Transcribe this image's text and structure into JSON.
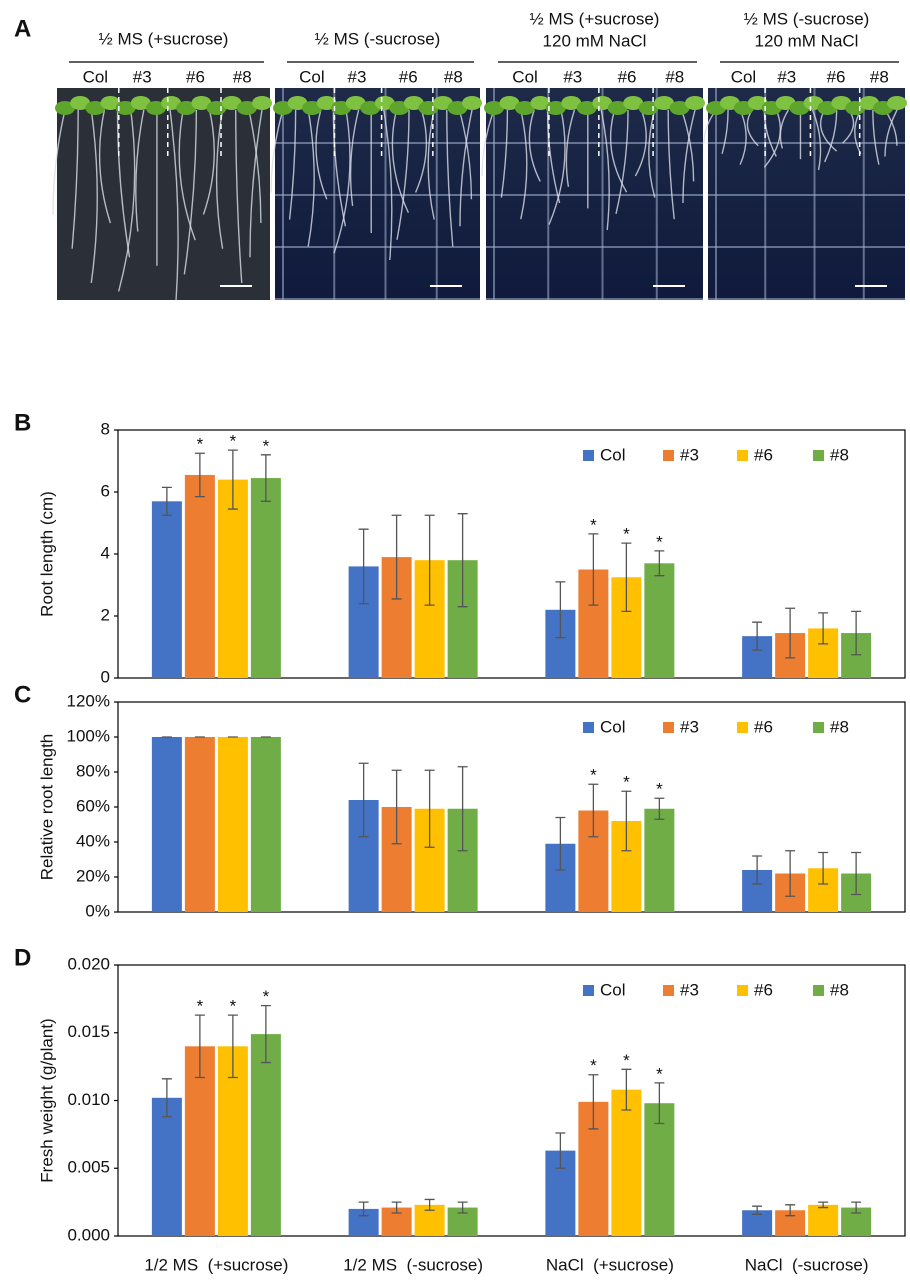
{
  "panel_a": {
    "label": "A",
    "plates": [
      {
        "title": [
          "½ MS (+sucrose)"
        ],
        "lanes": [
          "Col",
          "#3",
          "#6",
          "#8"
        ]
      },
      {
        "title": [
          "½ MS (-sucrose)"
        ],
        "lanes": [
          "Col",
          "#3",
          "#6",
          "#8"
        ]
      },
      {
        "title": [
          "½ MS (+sucrose)",
          "120 mM NaCl"
        ],
        "lanes": [
          "Col",
          "#3",
          "#6",
          "#8"
        ]
      },
      {
        "title": [
          "½ MS (-sucrose)",
          "120 mM NaCl"
        ],
        "lanes": [
          "Col",
          "#3",
          "#6",
          "#8"
        ]
      }
    ]
  },
  "chart_data": [
    {
      "type": "bar",
      "panel": "B",
      "y_label": "Root length (cm)",
      "categories": [
        null,
        null,
        null,
        null
      ],
      "ylim": [
        0,
        8
      ],
      "yticks": [
        0,
        2,
        4,
        6,
        8
      ],
      "legend": "top-right",
      "series": [
        {
          "name": "Col",
          "color": "#4472c4",
          "values": [
            5.7,
            3.6,
            2.2,
            1.35
          ],
          "errors": [
            0.45,
            1.2,
            0.9,
            0.45
          ],
          "annotations": [
            null,
            null,
            null,
            null
          ]
        },
        {
          "name": "#3",
          "color": "#ed7d31",
          "values": [
            6.55,
            3.9,
            3.5,
            1.45
          ],
          "errors": [
            0.7,
            1.35,
            1.15,
            0.8
          ],
          "annotations": [
            "*",
            null,
            "*",
            null
          ]
        },
        {
          "name": "#6",
          "color": "#ffc000",
          "values": [
            6.4,
            3.8,
            3.25,
            1.6
          ],
          "errors": [
            0.95,
            1.45,
            1.1,
            0.5
          ],
          "annotations": [
            "*",
            null,
            "*",
            null
          ]
        },
        {
          "name": "#8",
          "color": "#70ad47",
          "values": [
            6.45,
            3.8,
            3.7,
            1.45
          ],
          "errors": [
            0.75,
            1.5,
            0.4,
            0.7
          ],
          "annotations": [
            "*",
            null,
            "*",
            null
          ]
        }
      ]
    },
    {
      "type": "bar",
      "panel": "C",
      "y_label": "Relative root length",
      "categories": [
        null,
        null,
        null,
        null
      ],
      "ylim": [
        0,
        120
      ],
      "yticks": [
        {
          "value": 0,
          "label": "0%"
        },
        {
          "value": 20,
          "label": "20%"
        },
        {
          "value": 40,
          "label": "40%"
        },
        {
          "value": 60,
          "label": "60%"
        },
        {
          "value": 80,
          "label": "80%"
        },
        {
          "value": 100,
          "label": "100%"
        },
        {
          "value": 120,
          "label": "120%"
        }
      ],
      "legend": "top-right",
      "series": [
        {
          "name": "Col",
          "color": "#4472c4",
          "values": [
            100,
            64,
            39,
            24
          ],
          "errors": [
            0,
            21,
            15,
            8
          ],
          "annotations": [
            null,
            null,
            null,
            null
          ]
        },
        {
          "name": "#3",
          "color": "#ed7d31",
          "values": [
            100,
            60,
            58,
            22
          ],
          "errors": [
            0,
            21,
            15,
            13
          ],
          "annotations": [
            null,
            null,
            "*",
            null
          ]
        },
        {
          "name": "#6",
          "color": "#ffc000",
          "values": [
            100,
            59,
            52,
            25
          ],
          "errors": [
            0,
            22,
            17,
            9
          ],
          "annotations": [
            null,
            null,
            "*",
            null
          ]
        },
        {
          "name": "#8",
          "color": "#70ad47",
          "values": [
            100,
            59,
            59,
            22
          ],
          "errors": [
            0,
            24,
            6,
            12
          ],
          "annotations": [
            null,
            null,
            "*",
            null
          ]
        }
      ]
    },
    {
      "type": "bar",
      "panel": "D",
      "y_label": "Fresh weight  (g/plant)",
      "categories": [
        "1/2 MS  (+sucrose)",
        "1/2 MS  (-sucrose)",
        "NaCl  (+sucrose)",
        "NaCl  (-sucrose)"
      ],
      "ylim": [
        0,
        0.02
      ],
      "yticks": [
        {
          "value": 0,
          "label": "0.000"
        },
        {
          "value": 0.005,
          "label": "0.005"
        },
        {
          "value": 0.01,
          "label": "0.010"
        },
        {
          "value": 0.015,
          "label": "0.015"
        },
        {
          "value": 0.02,
          "label": "0.020"
        }
      ],
      "legend": "top-right",
      "series": [
        {
          "name": "Col",
          "color": "#4472c4",
          "values": [
            0.0102,
            0.002,
            0.0063,
            0.0019
          ],
          "errors": [
            0.0014,
            0.0005,
            0.0013,
            0.0003
          ],
          "annotations": [
            null,
            null,
            null,
            null
          ]
        },
        {
          "name": "#3",
          "color": "#ed7d31",
          "values": [
            0.014,
            0.0021,
            0.0099,
            0.0019
          ],
          "errors": [
            0.0023,
            0.0004,
            0.002,
            0.0004
          ],
          "annotations": [
            "*",
            null,
            "*",
            null
          ]
        },
        {
          "name": "#6",
          "color": "#ffc000",
          "values": [
            0.014,
            0.0023,
            0.0108,
            0.0023
          ],
          "errors": [
            0.0023,
            0.0004,
            0.0015,
            0.0002
          ],
          "annotations": [
            "*",
            null,
            "*",
            null
          ]
        },
        {
          "name": "#8",
          "color": "#70ad47",
          "values": [
            0.0149,
            0.0021,
            0.0098,
            0.0021
          ],
          "errors": [
            0.0021,
            0.0004,
            0.0015,
            0.0004
          ],
          "annotations": [
            "*",
            null,
            "*",
            null
          ]
        }
      ]
    }
  ]
}
